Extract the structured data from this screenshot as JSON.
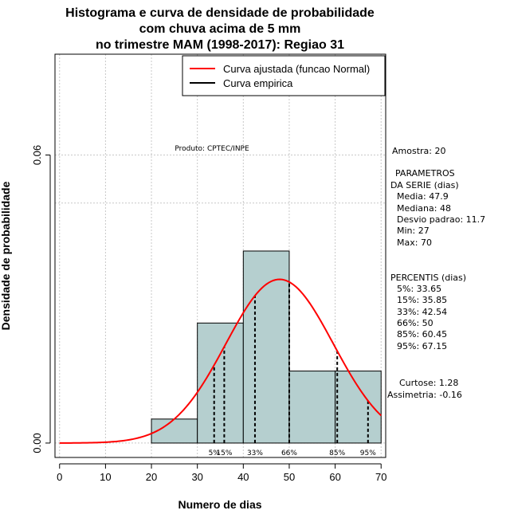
{
  "chart_data": {
    "type": "histogram",
    "title": [
      "Histograma e curva de densidade de probabilidade",
      "com chuva acima de 5 mm",
      "no trimestre MAM (1998-2017): Regiao 31"
    ],
    "xlabel": "Numero de dias",
    "ylabel": "Densidade de probabilidade",
    "xlim": [
      -1,
      71
    ],
    "ylim": [
      -0.003,
      0.081
    ],
    "x_ticks": [
      0,
      10,
      20,
      30,
      40,
      50,
      60,
      70
    ],
    "y_ticks": [
      0.0,
      0.06
    ],
    "y_tick_labels": [
      "0.00",
      "0.06"
    ],
    "bins": [
      {
        "from": 20,
        "to": 30,
        "density": 0.005
      },
      {
        "from": 30,
        "to": 40,
        "density": 0.025
      },
      {
        "from": 40,
        "to": 50,
        "density": 0.04
      },
      {
        "from": 50,
        "to": 60,
        "density": 0.015
      },
      {
        "from": 60,
        "to": 70,
        "density": 0.015
      }
    ],
    "bar_fill": "#b5cfcf",
    "normal_curve": {
      "mean": 47.9,
      "sd": 11.7,
      "x_from": 0,
      "x_to": 70,
      "color": "#ff0000"
    },
    "percentiles": [
      {
        "label": "5%",
        "value": 33.65
      },
      {
        "label": "15%",
        "value": 35.85
      },
      {
        "label": "33%",
        "value": 42.54
      },
      {
        "label": "66%",
        "value": 50
      },
      {
        "label": "85%",
        "value": 60.45
      },
      {
        "label": "95%",
        "value": 67.15
      }
    ],
    "grid": true,
    "grid_y_extra": 0.05,
    "legend": {
      "placement": "top-right",
      "entries": [
        {
          "label": "Curva ajustada (funcao Normal)",
          "color": "#ff0000"
        },
        {
          "label": "Curva empirica",
          "color": "#000000"
        }
      ]
    },
    "annotation": "Produto: CPTEC/INPE",
    "stats_panel": [
      "Amostra: 20",
      "PARAMETROS",
      "DA SERIE (dias)",
      "Media: 47.9",
      "Mediana: 48",
      "Desvio padrao: 11.7",
      "Min: 27",
      "Max: 70",
      "PERCENTIS (dias)",
      "5%: 33.65",
      "15%: 35.85",
      "33%: 42.54",
      "66%: 50",
      "85%: 60.45",
      "95%: 67.15",
      "Curtose: 1.28",
      "Assimetria: -0.16"
    ]
  }
}
